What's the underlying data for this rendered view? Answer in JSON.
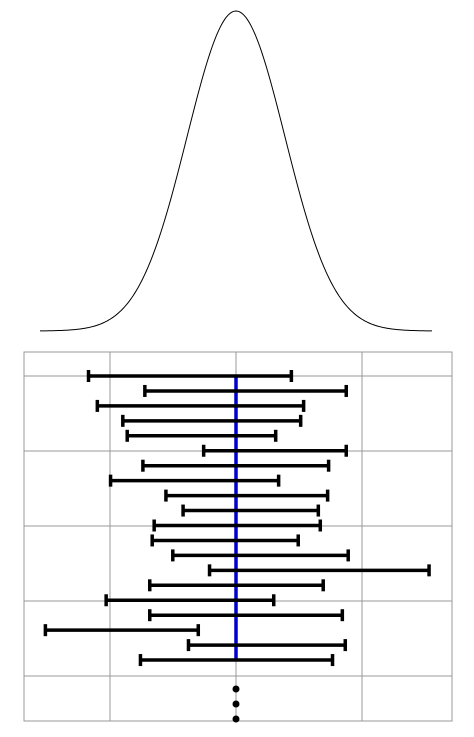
{
  "chart_data": {
    "type": "diagram",
    "title": "",
    "curve": {
      "kind": "normal-density",
      "mean": 0,
      "sd": 1,
      "x_range": [
        -4,
        4
      ]
    },
    "true_value_line": {
      "x": 0,
      "color": "#0000cc"
    },
    "interval_color": "#000000",
    "grid_color": "#999999",
    "x_range": [
      -4.08,
      4.32
    ],
    "intervals": [
      {
        "low": -3.01,
        "high": 1.13
      },
      {
        "low": -1.86,
        "high": 2.25
      },
      {
        "low": -2.83,
        "high": 1.38
      },
      {
        "low": -2.31,
        "high": 1.32
      },
      {
        "low": -2.22,
        "high": 0.81
      },
      {
        "low": -0.66,
        "high": 2.25
      },
      {
        "low": -1.9,
        "high": 1.89
      },
      {
        "low": -2.56,
        "high": 0.87
      },
      {
        "low": -1.43,
        "high": 1.87
      },
      {
        "low": -1.08,
        "high": 1.68
      },
      {
        "low": -1.67,
        "high": 1.72
      },
      {
        "low": -1.71,
        "high": 1.27
      },
      {
        "low": -1.29,
        "high": 2.29
      },
      {
        "low": -0.54,
        "high": 3.94
      },
      {
        "low": -1.76,
        "high": 1.78
      },
      {
        "low": -2.65,
        "high": 0.77
      },
      {
        "low": -1.76,
        "high": 2.17
      },
      {
        "low": -3.89,
        "high": -0.77
      },
      {
        "low": -0.97,
        "high": 2.23
      },
      {
        "low": -1.95,
        "high": 1.97
      }
    ],
    "continuation_dots": 3
  }
}
